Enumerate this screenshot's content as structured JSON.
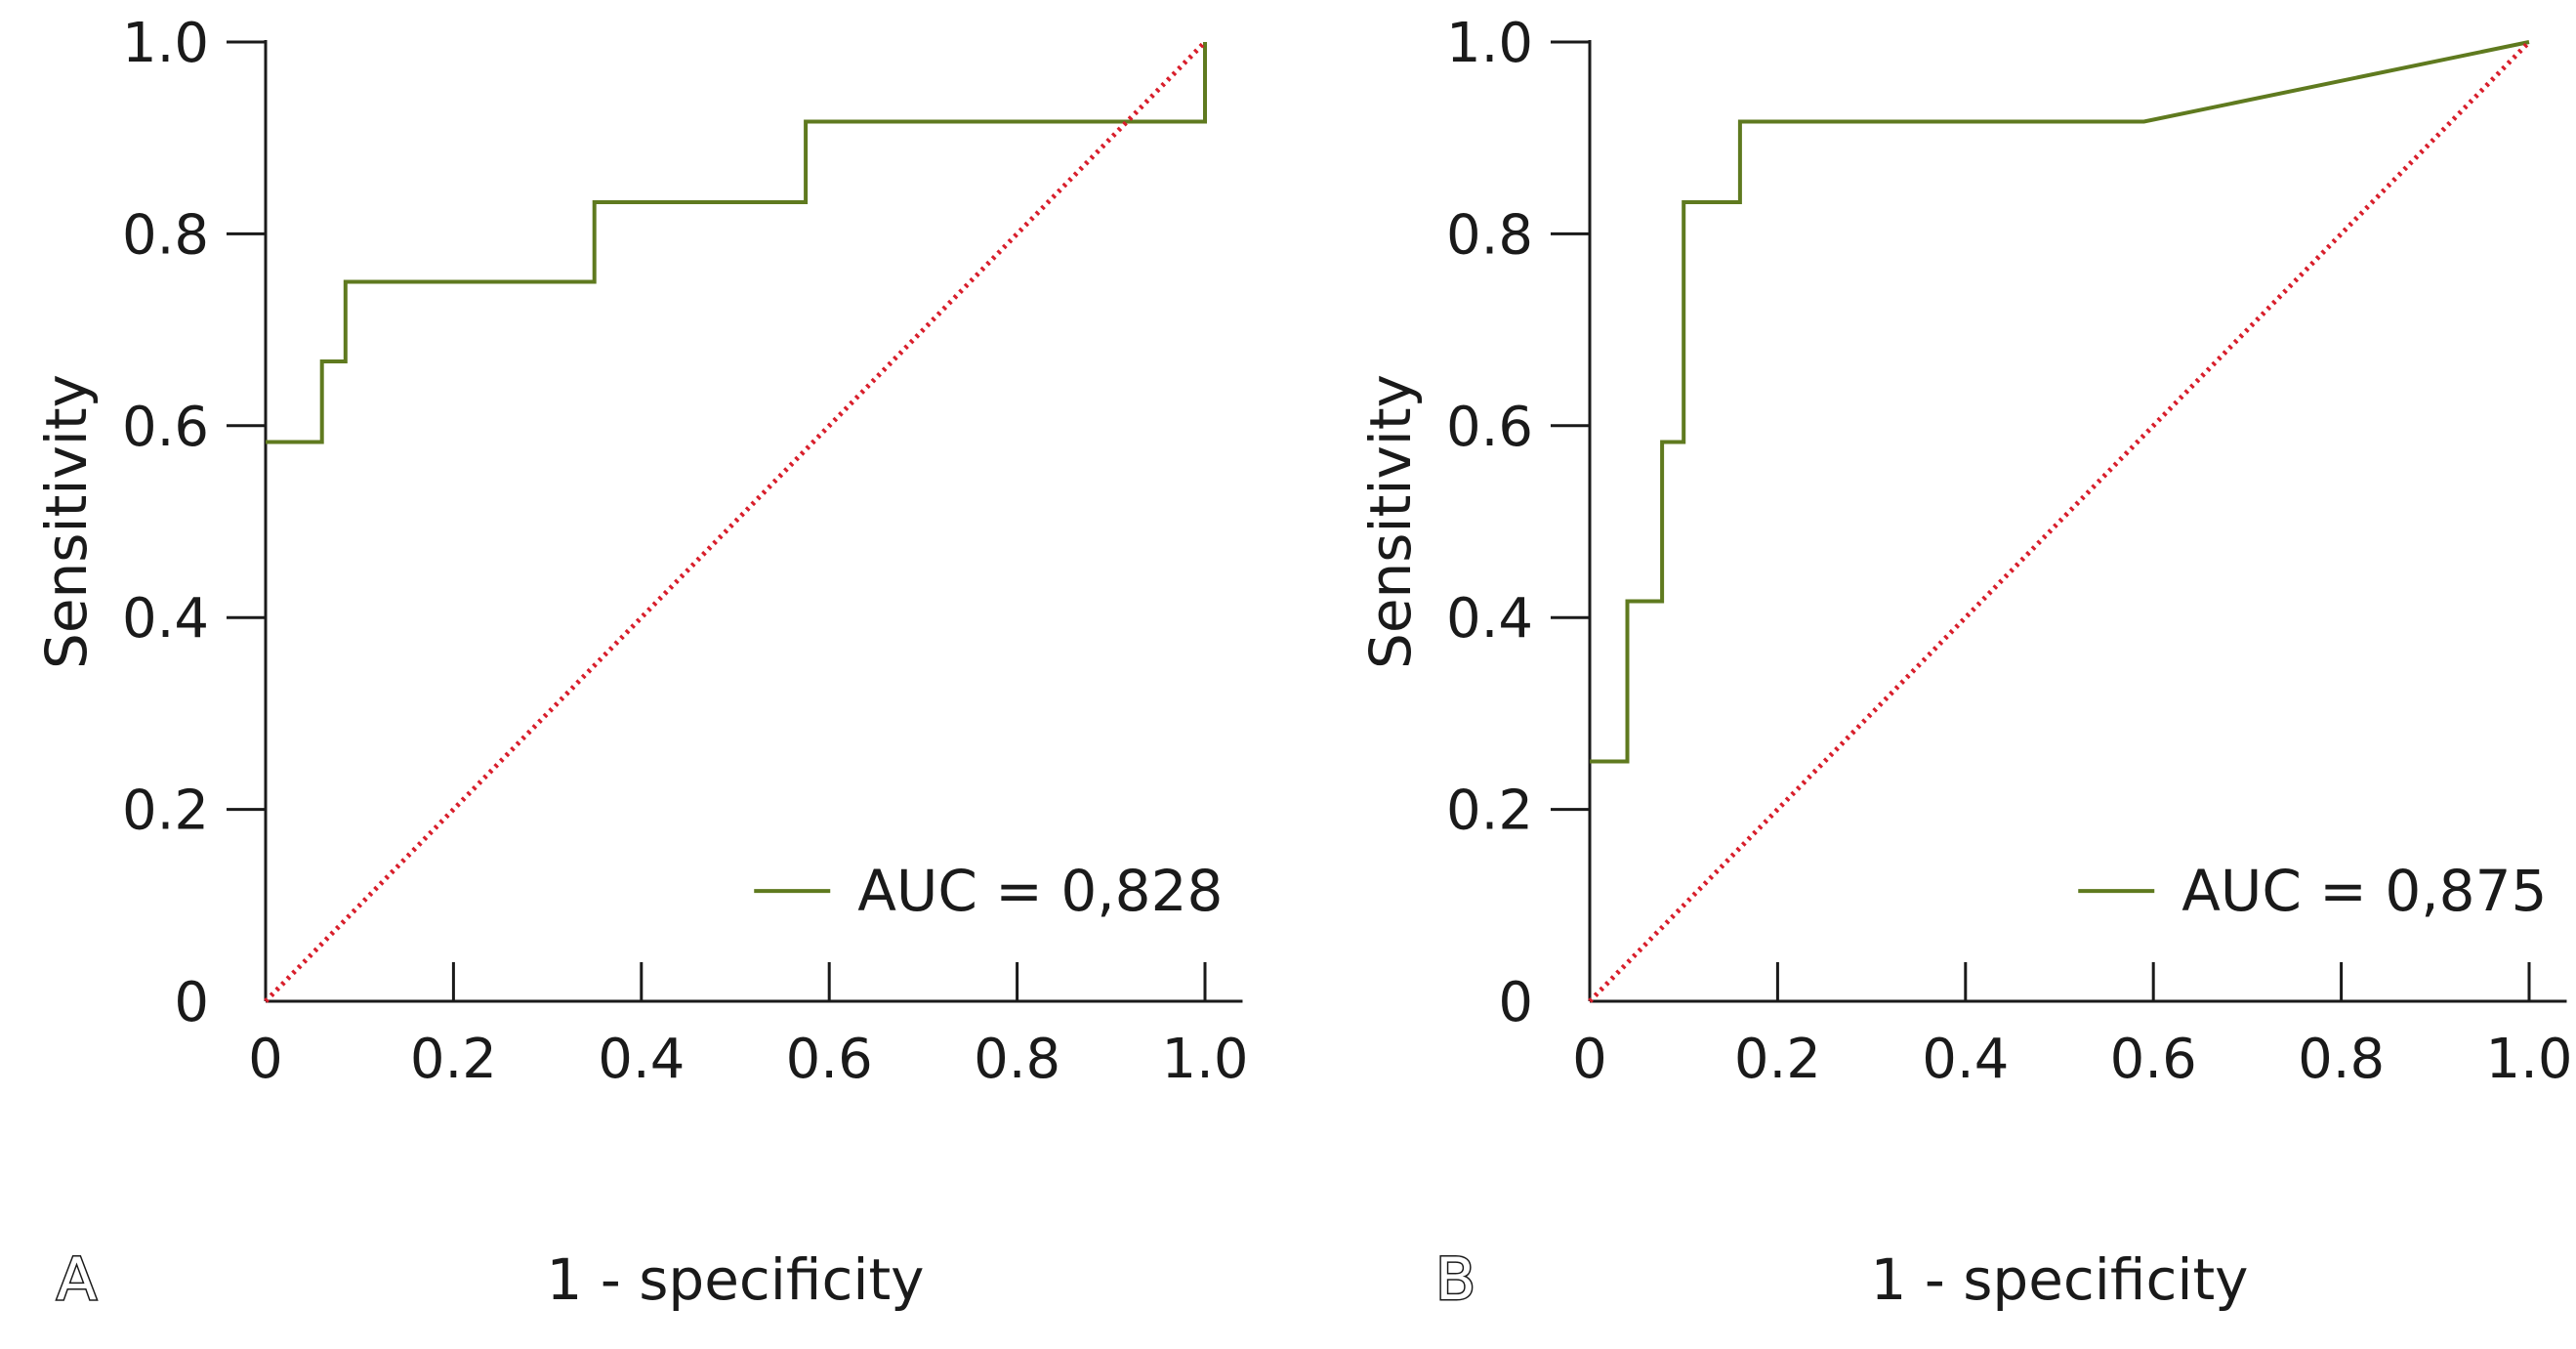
{
  "chart_data": [
    {
      "panel": "A",
      "type": "line",
      "title": "",
      "xlabel": "1 - specificity",
      "ylabel": "Sensitivity",
      "xlim": [
        0,
        1.04
      ],
      "ylim": [
        0,
        1.0
      ],
      "xticks": [
        0,
        0.2,
        0.4,
        0.6,
        0.8,
        1.0
      ],
      "xtick_labels": [
        "0",
        "0.2",
        "0.4",
        "0.6",
        "0.8",
        "1.0"
      ],
      "yticks": [
        0,
        0.2,
        0.4,
        0.6,
        0.8,
        1.0
      ],
      "ytick_labels": [
        "0",
        "0.2",
        "0.4",
        "0.6",
        "0.8",
        "1.0"
      ],
      "legend_position": "bottom-right",
      "series": [
        {
          "name": "AUC = 0,828",
          "color": "#5f7a1f",
          "style": "solid",
          "x": [
            0,
            0.06,
            0.06,
            0.085,
            0.085,
            0.35,
            0.35,
            0.575,
            0.575,
            1.0,
            1.0
          ],
          "y": [
            0.583,
            0.583,
            0.667,
            0.667,
            0.75,
            0.75,
            0.833,
            0.833,
            0.917,
            0.917,
            1.0
          ]
        },
        {
          "name": "reference",
          "color": "#d81e2b",
          "style": "dotted",
          "x": [
            0,
            1.0
          ],
          "y": [
            0,
            1.0
          ]
        }
      ]
    },
    {
      "panel": "B",
      "type": "line",
      "title": "",
      "xlabel": "1 - specificity",
      "ylabel": "Sensitivity",
      "xlim": [
        0,
        1.04
      ],
      "ylim": [
        0,
        1.0
      ],
      "xticks": [
        0,
        0.2,
        0.4,
        0.6,
        0.8,
        1.0
      ],
      "xtick_labels": [
        "0",
        "0.2",
        "0.4",
        "0.6",
        "0.8",
        "1.0"
      ],
      "yticks": [
        0,
        0.2,
        0.4,
        0.6,
        0.8,
        1.0
      ],
      "ytick_labels": [
        "0",
        "0.2",
        "0.4",
        "0.6",
        "0.8",
        "1.0"
      ],
      "legend_position": "bottom-right",
      "series": [
        {
          "name": "AUC = 0,875",
          "color": "#5f7a1f",
          "style": "solid",
          "x": [
            0,
            0.04,
            0.04,
            0.077,
            0.077,
            0.1,
            0.1,
            0.16,
            0.16,
            0.59,
            1.0
          ],
          "y": [
            0.25,
            0.25,
            0.417,
            0.417,
            0.583,
            0.583,
            0.833,
            0.833,
            0.917,
            0.917,
            1.0
          ]
        },
        {
          "name": "reference",
          "color": "#d81e2b",
          "style": "dotted",
          "x": [
            0,
            1.0
          ],
          "y": [
            0,
            1.0
          ]
        }
      ]
    }
  ]
}
